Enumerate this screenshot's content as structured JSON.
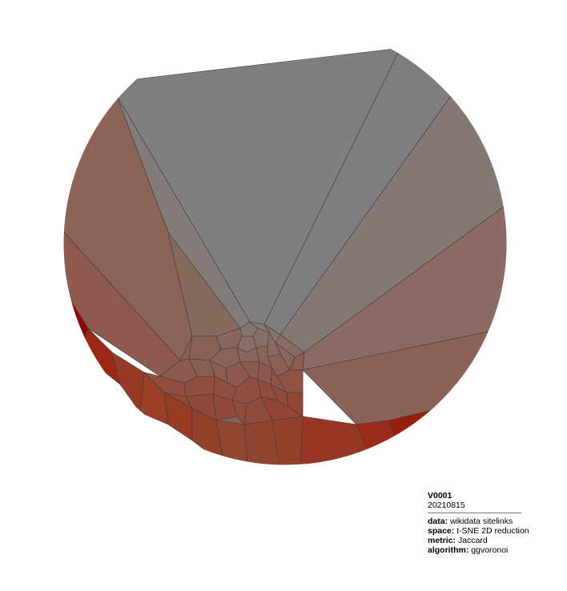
{
  "caption": {
    "id": "V0001",
    "date": "20210815",
    "fields": [
      {
        "key": "data:",
        "value": "wikidata sitelinks"
      },
      {
        "key": "space:",
        "value": "t-SNE 2D reduction"
      },
      {
        "key": "metric:",
        "value": "Jaccard"
      },
      {
        "key": "algorithm:",
        "value": "ggvoronoi"
      }
    ]
  },
  "colors": {
    "background": "#ffffff",
    "low": "#7f7f7f",
    "mid": "#8e5a4e",
    "high": "#8b0000",
    "edge": "#3a3a3a"
  }
}
